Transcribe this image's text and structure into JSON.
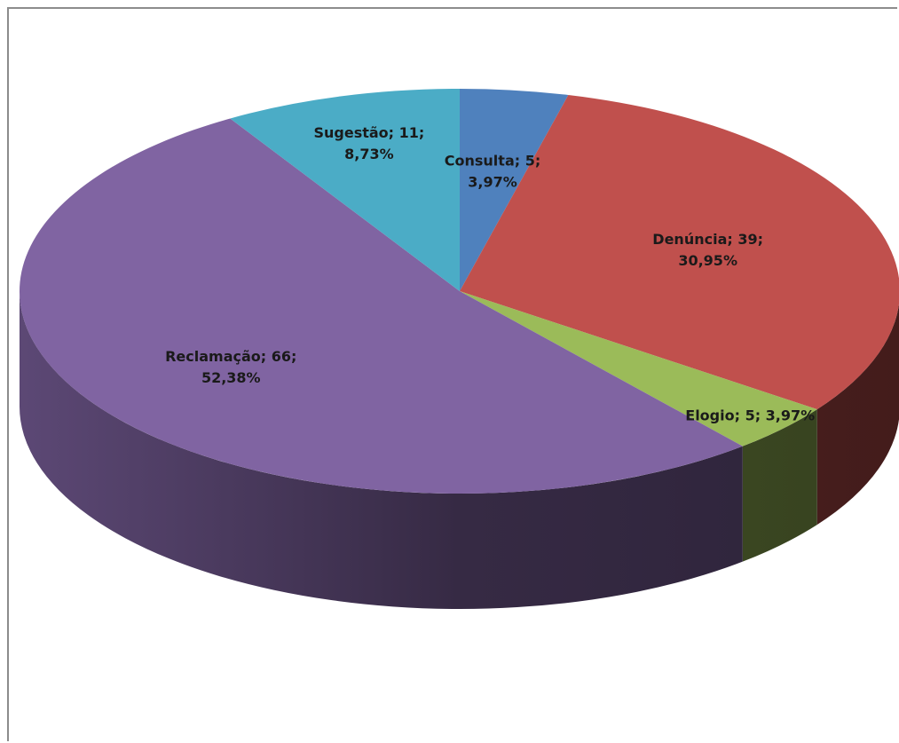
{
  "chart_data": {
    "type": "pie",
    "categories": [
      "Consulta",
      "Denúncia",
      "Elogio",
      "Reclamação",
      "Sugestão"
    ],
    "values": [
      5,
      39,
      5,
      66,
      11
    ],
    "percentages": [
      "3,97%",
      "30,95%",
      "3,97%",
      "52,38%",
      "8,73%"
    ],
    "colors": [
      "#4f81bd",
      "#c0504d",
      "#9bbb59",
      "#8064a2",
      "#4bacc6"
    ],
    "data_labels": [
      {
        "lines": [
          "Consulta; 5;",
          "3,97%"
        ]
      },
      {
        "lines": [
          "Denúncia; 39;",
          "30,95%"
        ]
      },
      {
        "lines": [
          "Elogio; 5; 3,97%"
        ]
      },
      {
        "lines": [
          "Reclamação; 66;",
          "52,38%"
        ]
      },
      {
        "lines": [
          "Sugestão; 11;",
          "8,73%"
        ]
      }
    ],
    "legend": "none",
    "three_d": true
  }
}
